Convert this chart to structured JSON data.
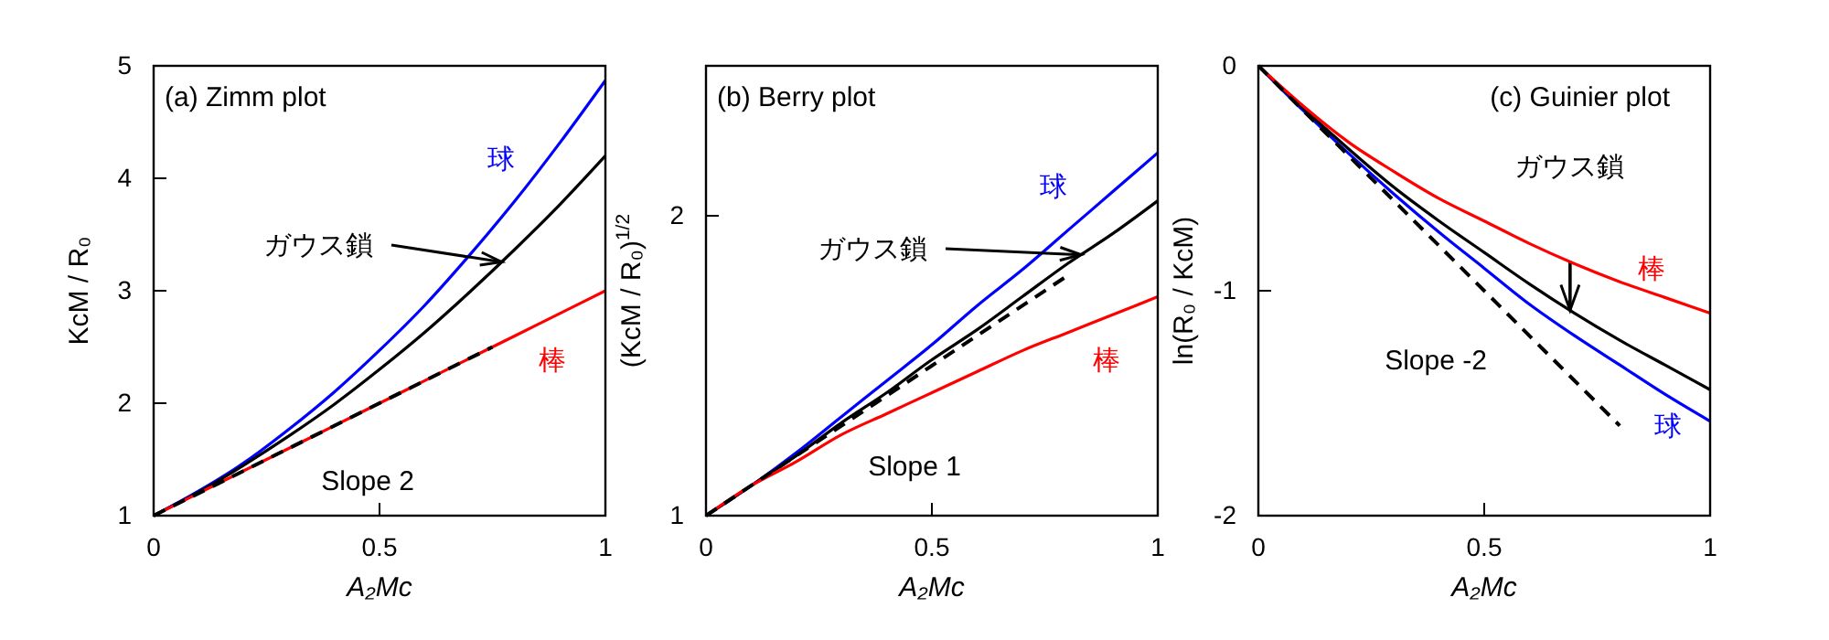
{
  "chart_data": [
    {
      "type": "line",
      "title": "(a) Zimm plot",
      "xlabel": "A₂Mc",
      "ylabel": "KcM / R₀",
      "x": [
        0,
        0.1,
        0.2,
        0.3,
        0.4,
        0.5,
        0.6,
        0.7,
        0.8,
        0.9,
        1
      ],
      "xlim": [
        0,
        1
      ],
      "xticks": [
        0,
        0.5,
        1
      ],
      "ylim": [
        1,
        5
      ],
      "yticks": [
        1,
        2,
        3,
        4,
        5
      ],
      "series": [
        {
          "name": "球",
          "color": "#0000ff",
          "values": [
            1,
            1.22,
            1.47,
            1.77,
            2.1,
            2.47,
            2.87,
            3.32,
            3.8,
            4.32,
            4.87
          ]
        },
        {
          "name": "ガウス鎖",
          "color": "#000000",
          "values": [
            1,
            1.21,
            1.45,
            1.71,
            1.99,
            2.3,
            2.63,
            2.99,
            3.37,
            3.77,
            4.2
          ]
        },
        {
          "name": "棒",
          "color": "#ff0000",
          "values": [
            1,
            1.2,
            1.4,
            1.6,
            1.8,
            2,
            2.2,
            2.4,
            2.6,
            2.8,
            3
          ]
        },
        {
          "color": "#000000",
          "line_style": "dashed",
          "x": [
            0,
            0.75
          ],
          "values": [
            1,
            2.5
          ]
        }
      ],
      "annotations": [
        "Slope 2"
      ]
    },
    {
      "type": "line",
      "title": "(b) Berry plot",
      "xlabel": "A₂Mc",
      "ylabel": "(KcM / R₀)$^{1/2}$",
      "x": [
        0,
        0.1,
        0.2,
        0.3,
        0.4,
        0.5,
        0.6,
        0.7,
        0.8,
        0.9,
        1
      ],
      "xlim": [
        0,
        1
      ],
      "xticks": [
        0,
        0.5,
        1
      ],
      "ylim": [
        1,
        2.5
      ],
      "yticks": [
        1,
        2
      ],
      "series": [
        {
          "name": "球",
          "color": "#0000ff",
          "values": [
            1,
            1.1,
            1.21,
            1.33,
            1.45,
            1.57,
            1.7,
            1.82,
            1.95,
            2.08,
            2.21
          ]
        },
        {
          "name": "ガウス鎖",
          "color": "#000000",
          "values": [
            1,
            1.1,
            1.2,
            1.31,
            1.41,
            1.52,
            1.62,
            1.73,
            1.84,
            1.94,
            2.05
          ]
        },
        {
          "name": "棒",
          "color": "#ff0000",
          "values": [
            1,
            1.1,
            1.18,
            1.27,
            1.34,
            1.41,
            1.48,
            1.55,
            1.61,
            1.67,
            1.73
          ]
        },
        {
          "color": "#000000",
          "line_style": "dashed",
          "x": [
            0,
            0.8
          ],
          "values": [
            1,
            1.8
          ]
        }
      ],
      "annotations": [
        "Slope 1"
      ]
    },
    {
      "type": "line",
      "title": "(c) Guinier plot",
      "xlabel": "A₂Mc",
      "ylabel": "ln(R₀ / KcM)",
      "x": [
        0,
        0.1,
        0.2,
        0.3,
        0.4,
        0.5,
        0.6,
        0.7,
        0.8,
        0.9,
        1
      ],
      "xlim": [
        0,
        1
      ],
      "xticks": [
        0,
        0.5,
        1
      ],
      "ylim": [
        -2,
        0
      ],
      "yticks": [
        -2,
        -1,
        0
      ],
      "series": [
        {
          "name": "球",
          "color": "#0000ff",
          "values": [
            0,
            -0.2,
            -0.39,
            -0.57,
            -0.74,
            -0.9,
            -1.06,
            -1.2,
            -1.33,
            -1.46,
            -1.58
          ]
        },
        {
          "name": "ガウス鎖",
          "color": "#000000",
          "values": [
            0,
            -0.19,
            -0.37,
            -0.54,
            -0.69,
            -0.83,
            -0.97,
            -1.1,
            -1.22,
            -1.33,
            -1.44
          ]
        },
        {
          "name": "棒",
          "color": "#ff0000",
          "values": [
            0,
            -0.18,
            -0.34,
            -0.47,
            -0.59,
            -0.69,
            -0.79,
            -0.88,
            -0.96,
            -1.03,
            -1.1
          ]
        },
        {
          "color": "#000000",
          "line_style": "dashed",
          "x": [
            0,
            0.8
          ],
          "values": [
            0,
            -1.6
          ]
        }
      ],
      "annotations": [
        "Slope -2"
      ]
    }
  ]
}
